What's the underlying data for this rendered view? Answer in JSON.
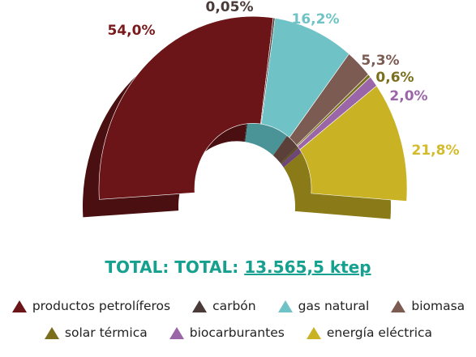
{
  "chart_data": {
    "type": "pie",
    "style": "3D half-donut",
    "total_prefix": "TOTAL: TOTAL:",
    "total_value": "13.565,5 ktep",
    "series": [
      {
        "name": "productos petrolíferos",
        "value": 54.0,
        "label": "54,0%",
        "color": "#6b1518",
        "side": "#4a0f11",
        "label_color": "#7a1a1c"
      },
      {
        "name": "carbón",
        "value": 0.05,
        "label": "0,05%",
        "color": "#4a3b38",
        "side": "#332826",
        "label_color": "#4a3b38"
      },
      {
        "name": "gas natural",
        "value": 16.2,
        "label": "16,2%",
        "color": "#6fc3c6",
        "side": "#4a9396",
        "label_color": "#6fc3c6"
      },
      {
        "name": "biomasa",
        "value": 5.3,
        "label": "5,3%",
        "color": "#7b5b52",
        "side": "#5a4039",
        "label_color": "#7b5b52"
      },
      {
        "name": "solar térmica",
        "value": 0.6,
        "label": "0,6%",
        "color": "#7a6f1d",
        "side": "#564e13",
        "label_color": "#7a6f1d"
      },
      {
        "name": "biocarburantes",
        "value": 2.0,
        "label": "2,0%",
        "color": "#9b66a8",
        "side": "#6e4678",
        "label_color": "#9b66a8"
      },
      {
        "name": "energía eléctrica",
        "value": 21.8,
        "label": "21,8%",
        "color": "#c9b224",
        "side": "#8a7a18",
        "label_color": "#d4bb2b"
      }
    ],
    "legend_placement": "bottom"
  }
}
